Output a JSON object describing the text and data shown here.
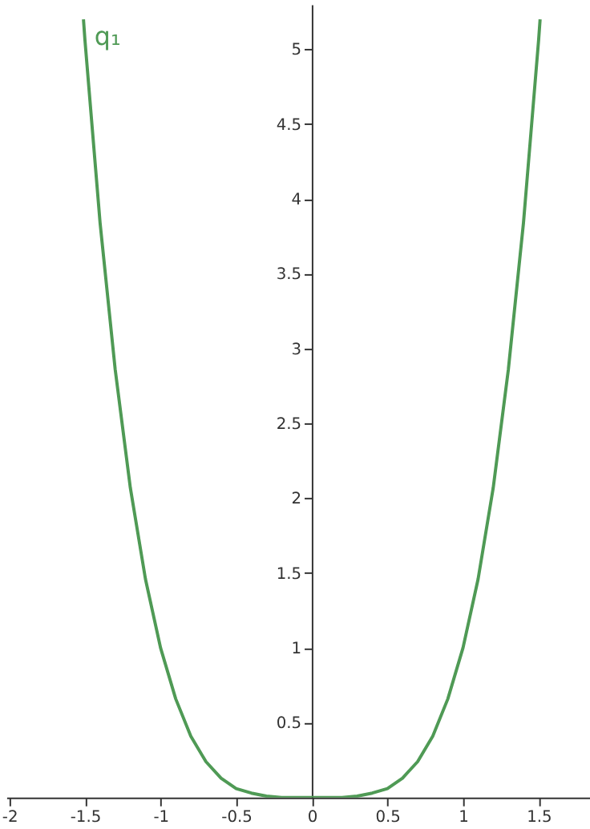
{
  "chart_data": {
    "type": "line",
    "x": [
      -1.51,
      -1.5,
      -1.4,
      -1.3,
      -1.2,
      -1.1,
      -1,
      -0.9,
      -0.8,
      -0.7,
      -0.6,
      -0.5,
      -0.4,
      -0.3,
      -0.2,
      -0.1,
      0,
      0.1,
      0.2,
      0.3,
      0.4,
      0.5,
      0.6,
      0.7,
      0.8,
      0.9,
      1,
      1.1,
      1.2,
      1.3,
      1.4,
      1.5,
      1.51
    ],
    "series": [
      {
        "name": "q₁",
        "color": "#4f9a55",
        "values": [
          5.2,
          5.06,
          3.84,
          2.86,
          2.07,
          1.46,
          1,
          0.66,
          0.41,
          0.24,
          0.13,
          0.06,
          0.03,
          0.01,
          0,
          0,
          0,
          0,
          0,
          0.01,
          0.03,
          0.06,
          0.13,
          0.24,
          0.41,
          0.66,
          1,
          1.46,
          2.07,
          2.86,
          3.84,
          5.06,
          5.2
        ]
      }
    ],
    "xlim": [
      -2.02,
      1.84
    ],
    "ylim": [
      0,
      5.3
    ],
    "xticks": [
      -2,
      -1.5,
      -1,
      -0.5,
      0,
      0.5,
      1,
      1.5
    ],
    "yticks": [
      0.5,
      1,
      1.5,
      2,
      2.5,
      3,
      3.5,
      4,
      4.5,
      5
    ],
    "grid": false,
    "marker": "none",
    "line_style": "solid"
  }
}
